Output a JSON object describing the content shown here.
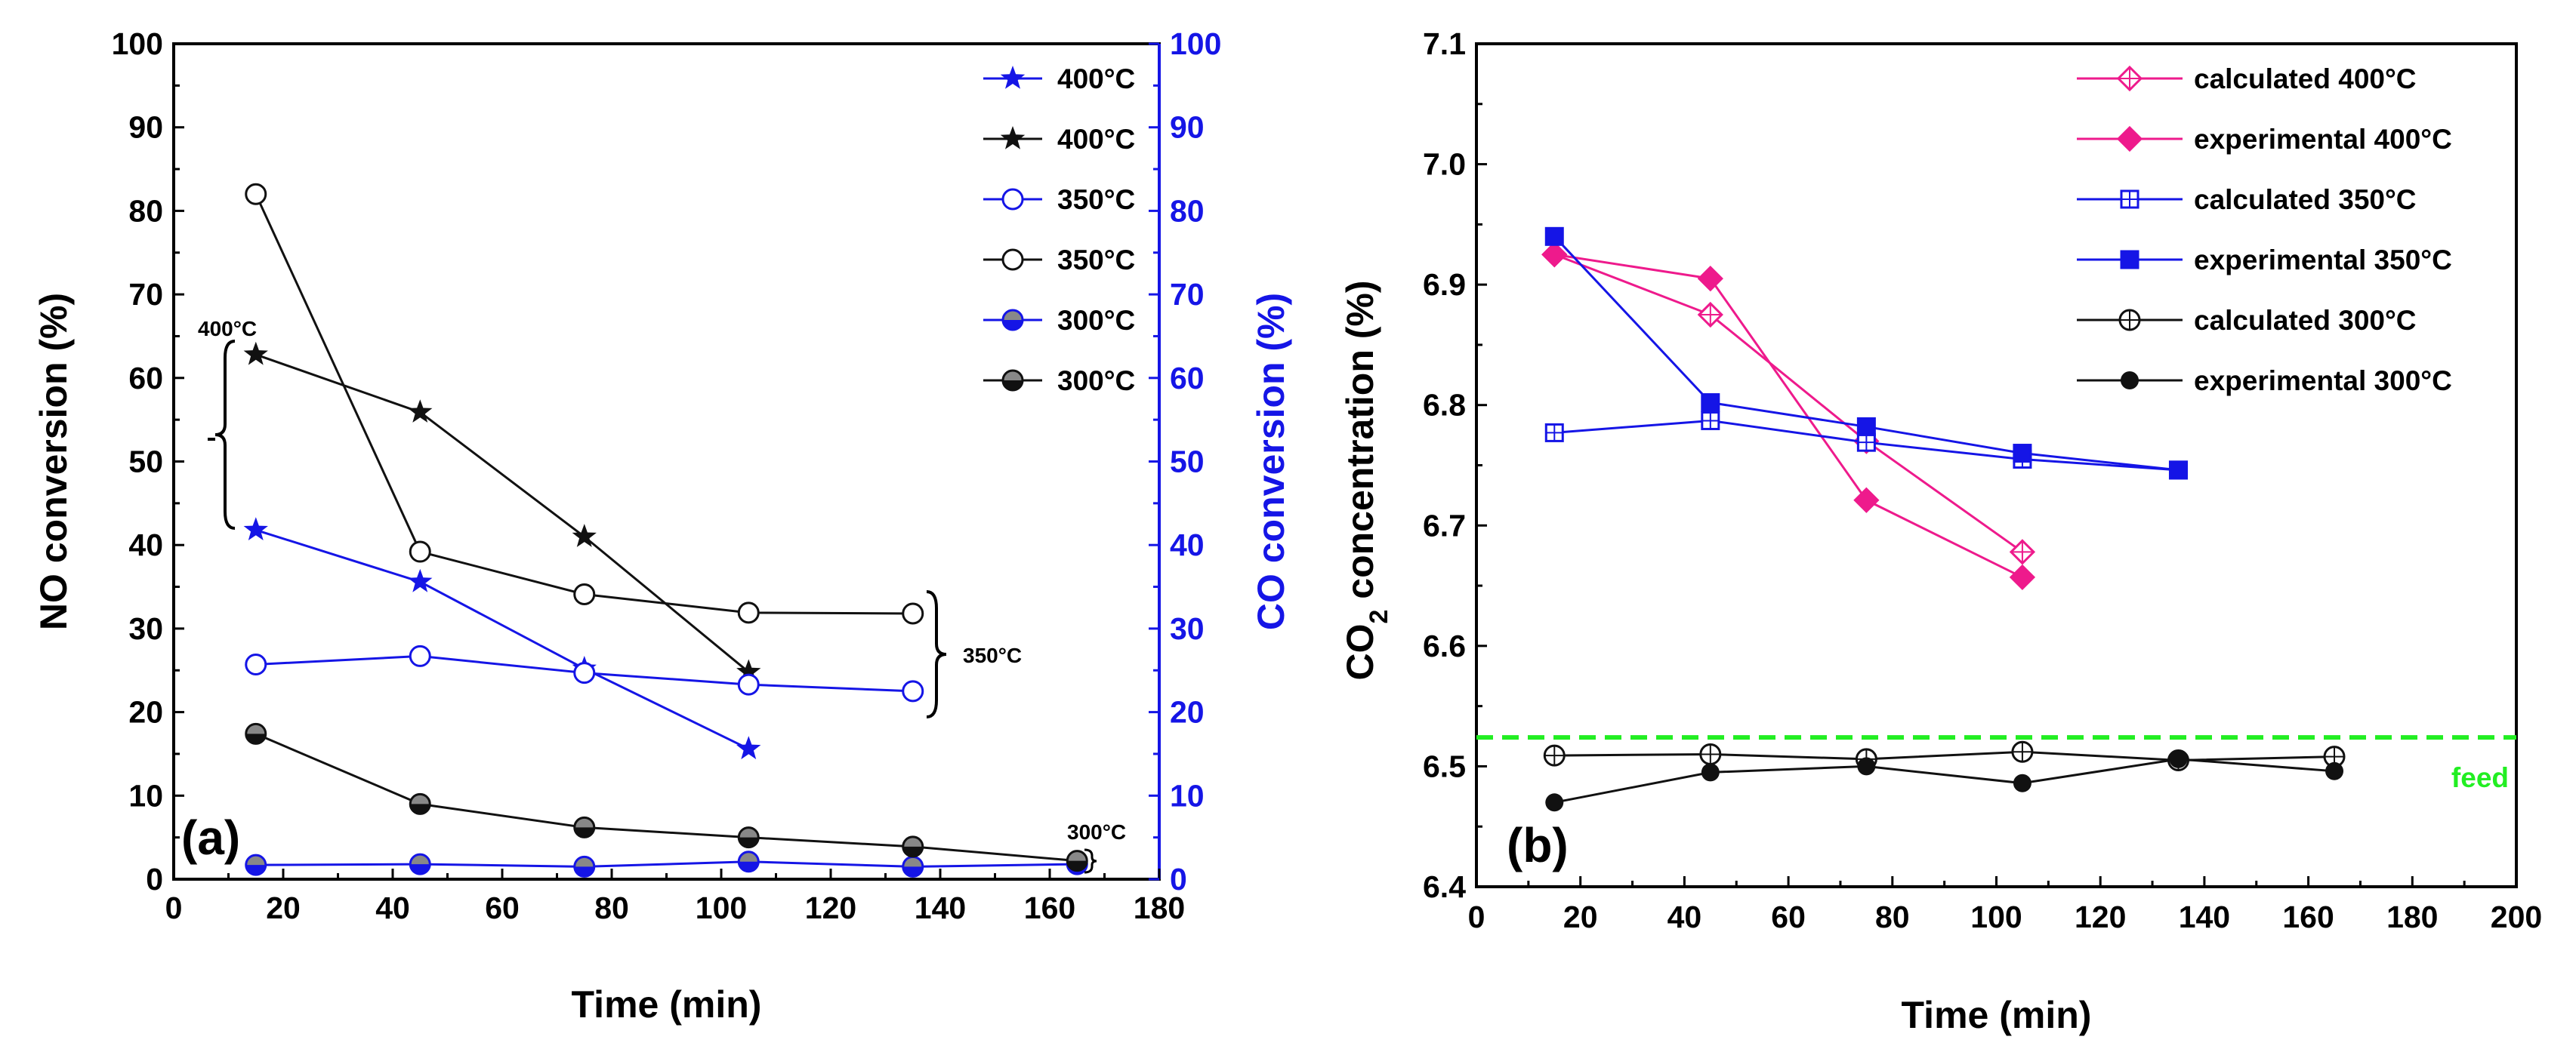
{
  "chart_data": [
    {
      "type": "line",
      "panel_label": "(a)",
      "xlabel": "Time (min)",
      "ylabel": "NO conversion (%)",
      "y2label": "CO conversion (%)",
      "xlim": [
        0,
        180
      ],
      "ylim": [
        0,
        100
      ],
      "y2lim": [
        0,
        100
      ],
      "xticks": [
        "0",
        "20",
        "40",
        "60",
        "80",
        "100",
        "120",
        "140",
        "160",
        "180"
      ],
      "yticks": [
        "0",
        "10",
        "20",
        "30",
        "40",
        "50",
        "60",
        "70",
        "80",
        "90",
        "100"
      ],
      "y2ticks": [
        "0",
        "10",
        "20",
        "30",
        "40",
        "50",
        "60",
        "70",
        "80",
        "90",
        "100"
      ],
      "legend_position": "top-right",
      "series": [
        {
          "name": "400°C",
          "axis": "right",
          "color": "#1515e6",
          "marker": "star",
          "x": [
            15,
            45,
            75,
            105
          ],
          "y": [
            41.8,
            35.6,
            25.2,
            15.6
          ]
        },
        {
          "name": "400°C",
          "axis": "left",
          "color": "#111111",
          "marker": "star",
          "x": [
            15,
            45,
            75,
            105
          ],
          "y": [
            62.8,
            55.9,
            41.0,
            24.8
          ]
        },
        {
          "name": "350°C",
          "axis": "right",
          "color": "#1515e6",
          "marker": "open-circle",
          "x": [
            15,
            45,
            75,
            105,
            135
          ],
          "y": [
            25.7,
            26.7,
            24.7,
            23.3,
            22.5
          ]
        },
        {
          "name": "350°C",
          "axis": "left",
          "color": "#111111",
          "marker": "open-circle",
          "x": [
            15,
            45,
            75,
            105,
            135
          ],
          "y": [
            82.0,
            39.2,
            34.1,
            31.9,
            31.8
          ]
        },
        {
          "name": "300°C",
          "axis": "right",
          "color": "#1515e6",
          "marker": "half-circle",
          "x": [
            15,
            45,
            75,
            105,
            135,
            165
          ],
          "y": [
            1.7,
            1.8,
            1.5,
            2.1,
            1.5,
            1.8
          ]
        },
        {
          "name": "300°C",
          "axis": "left",
          "color": "#111111",
          "marker": "half-circle",
          "x": [
            15,
            45,
            75,
            105,
            135,
            165
          ],
          "y": [
            17.4,
            9.0,
            6.2,
            5.0,
            3.9,
            2.2
          ]
        }
      ],
      "annotations": [
        "400°C",
        "350°C",
        "300°C"
      ]
    },
    {
      "type": "line",
      "panel_label": "(b)",
      "xlabel": "Time (min)",
      "ylabel_main": "CO",
      "ylabel_sub": "2",
      "ylabel_rest": " concentration (%)",
      "xlim": [
        0,
        200
      ],
      "ylim": [
        6.4,
        7.1
      ],
      "xticks": [
        "0",
        "20",
        "40",
        "60",
        "80",
        "100",
        "120",
        "140",
        "160",
        "180",
        "200"
      ],
      "yticks": [
        "6.4",
        "6.5",
        "6.6",
        "6.7",
        "6.8",
        "6.9",
        "7.0",
        "7.1"
      ],
      "legend_position": "top-right",
      "feed": {
        "label": "feed",
        "value": 6.524,
        "color": "#22ee22"
      },
      "series": [
        {
          "name": "calculated 400°C",
          "color": "#ee1a8c",
          "marker": "open-diamond",
          "x": [
            15,
            45,
            75,
            105
          ],
          "y": [
            6.925,
            6.875,
            6.77,
            6.678
          ]
        },
        {
          "name": "experimental 400°C",
          "color": "#ee1a8c",
          "marker": "filled-diamond",
          "x": [
            15,
            45,
            75,
            105
          ],
          "y": [
            6.925,
            6.905,
            6.721,
            6.657
          ]
        },
        {
          "name": "calculated 350°C",
          "color": "#1515e6",
          "marker": "open-square",
          "x": [
            15,
            45,
            75,
            105,
            135
          ],
          "y": [
            6.777,
            6.787,
            6.769,
            6.755,
            6.746
          ]
        },
        {
          "name": "experimental 350°C",
          "color": "#1515e6",
          "marker": "filled-square",
          "x": [
            15,
            45,
            75,
            105,
            135
          ],
          "y": [
            6.94,
            6.802,
            6.782,
            6.76,
            6.746
          ]
        },
        {
          "name": "calculated 300°C",
          "color": "#111111",
          "marker": "open-circle-cross",
          "x": [
            15,
            45,
            75,
            105,
            135,
            165
          ],
          "y": [
            6.509,
            6.51,
            6.506,
            6.512,
            6.505,
            6.508
          ]
        },
        {
          "name": "experimental 300°C",
          "color": "#111111",
          "marker": "filled-circle",
          "x": [
            15,
            45,
            75,
            105,
            135,
            165
          ],
          "y": [
            6.47,
            6.495,
            6.5,
            6.486,
            6.506,
            6.496
          ]
        }
      ]
    }
  ]
}
